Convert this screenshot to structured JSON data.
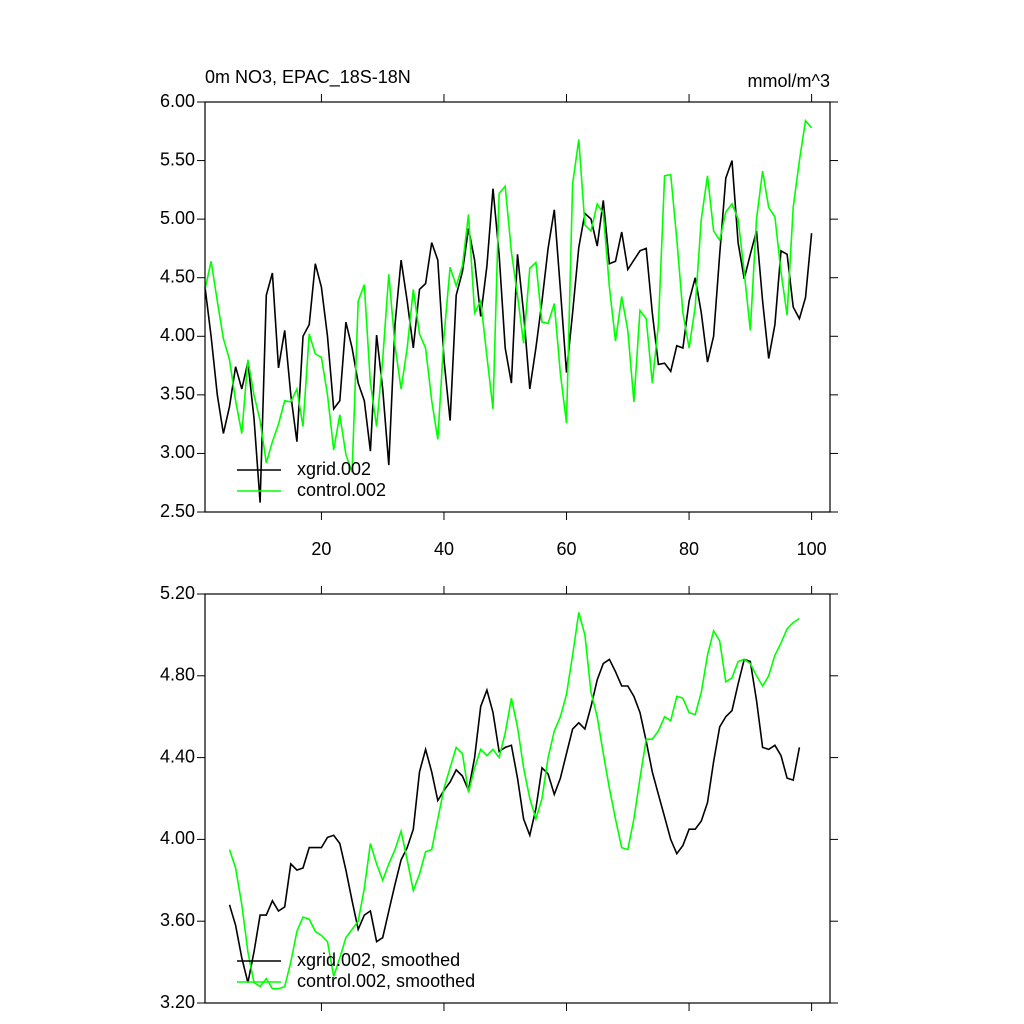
{
  "chart_data": [
    {
      "type": "line",
      "title": "0m NO3, EPAC_18S-18N",
      "subtitle": "mmol/m^3",
      "x": [
        1,
        2,
        3,
        4,
        5,
        6,
        7,
        8,
        9,
        10,
        11,
        12,
        13,
        14,
        15,
        16,
        17,
        18,
        19,
        20,
        21,
        22,
        23,
        24,
        25,
        26,
        27,
        28,
        29,
        30,
        31,
        32,
        33,
        34,
        35,
        36,
        37,
        38,
        39,
        40,
        41,
        42,
        43,
        44,
        45,
        46,
        47,
        48,
        49,
        50,
        51,
        52,
        53,
        54,
        55,
        56,
        57,
        58,
        59,
        60,
        61,
        62,
        63,
        64,
        65,
        66,
        67,
        68,
        69,
        70,
        71,
        72,
        73,
        74,
        75,
        76,
        77,
        78,
        79,
        80,
        81,
        82,
        83,
        84,
        85,
        86,
        87,
        88,
        89,
        90,
        91,
        92,
        93,
        94,
        95,
        96,
        97,
        98,
        99,
        100
      ],
      "series": [
        {
          "name": "xgrid.002",
          "color": "#000000",
          "values": [
            4.42,
            4.0,
            3.5,
            3.17,
            3.4,
            3.74,
            3.55,
            3.78,
            3.3,
            2.58,
            4.35,
            4.54,
            3.73,
            4.05,
            3.5,
            3.1,
            4.0,
            4.1,
            4.62,
            4.42,
            4.0,
            3.38,
            3.45,
            4.12,
            3.9,
            3.6,
            3.45,
            3.02,
            4.01,
            3.55,
            2.9,
            4.1,
            4.65,
            4.3,
            3.9,
            4.4,
            4.45,
            4.8,
            4.65,
            3.8,
            3.28,
            4.35,
            4.55,
            4.92,
            4.65,
            4.17,
            4.6,
            5.26,
            4.7,
            3.9,
            3.6,
            4.7,
            4.2,
            3.55,
            3.9,
            4.3,
            4.75,
            5.08,
            4.4,
            3.69,
            4.2,
            4.76,
            5.05,
            5.0,
            4.77,
            5.16,
            4.62,
            4.64,
            4.89,
            4.57,
            4.65,
            4.73,
            4.75,
            4.2,
            3.76,
            3.77,
            3.7,
            3.92,
            3.9,
            4.3,
            4.5,
            4.2,
            3.78,
            4.0,
            4.7,
            5.35,
            5.5,
            4.8,
            4.49,
            4.7,
            4.9,
            4.3,
            3.81,
            4.1,
            4.73,
            4.7,
            4.25,
            4.15,
            4.33,
            4.88
          ]
        },
        {
          "name": "control.002",
          "color": "#00ff00",
          "values": [
            4.4,
            4.64,
            4.3,
            3.98,
            3.8,
            3.45,
            3.17,
            3.8,
            3.5,
            3.28,
            2.92,
            3.1,
            3.25,
            3.45,
            3.44,
            3.55,
            3.23,
            4.02,
            3.85,
            3.82,
            3.5,
            3.03,
            3.33,
            2.99,
            2.84,
            4.3,
            4.44,
            3.6,
            3.23,
            3.8,
            4.53,
            3.92,
            3.55,
            3.9,
            4.4,
            4.02,
            3.9,
            3.45,
            3.12,
            4.0,
            4.59,
            4.43,
            4.6,
            5.04,
            4.2,
            4.3,
            3.83,
            3.38,
            5.22,
            5.28,
            4.72,
            4.35,
            3.94,
            4.58,
            4.63,
            4.12,
            4.11,
            4.28,
            3.68,
            3.26,
            5.3,
            5.68,
            4.95,
            4.9,
            5.13,
            5.05,
            4.42,
            3.96,
            4.34,
            4.05,
            3.44,
            4.22,
            4.15,
            3.6,
            4.1,
            5.37,
            5.38,
            4.83,
            4.2,
            3.9,
            4.25,
            5.0,
            5.37,
            4.9,
            4.82,
            5.06,
            5.13,
            5.0,
            4.55,
            4.05,
            5.0,
            5.41,
            5.1,
            5.02,
            4.55,
            4.18,
            5.1,
            5.5,
            5.84,
            5.78
          ]
        }
      ],
      "xlim": [
        1,
        103
      ],
      "xticks": [
        20,
        40,
        60,
        80,
        100
      ],
      "ylim": [
        2.5,
        6.0
      ],
      "yticks": [
        {
          "value": 2.5,
          "label": "2.50"
        },
        {
          "value": 3.0,
          "label": "3.00"
        },
        {
          "value": 3.5,
          "label": "3.50"
        },
        {
          "value": 4.0,
          "label": "4.00"
        },
        {
          "value": 4.5,
          "label": "4.50"
        },
        {
          "value": 5.0,
          "label": "5.00"
        },
        {
          "value": 5.5,
          "label": "5.50"
        },
        {
          "value": 6.0,
          "label": "6.00"
        }
      ],
      "legend": "lower left"
    },
    {
      "type": "line",
      "x": [
        5,
        6,
        7,
        8,
        9,
        10,
        11,
        12,
        13,
        14,
        15,
        16,
        17,
        18,
        19,
        20,
        21,
        22,
        23,
        24,
        25,
        26,
        27,
        28,
        29,
        30,
        31,
        32,
        33,
        34,
        35,
        36,
        37,
        38,
        39,
        40,
        41,
        42,
        43,
        44,
        45,
        46,
        47,
        48,
        49,
        50,
        51,
        52,
        53,
        54,
        55,
        56,
        57,
        58,
        59,
        60,
        61,
        62,
        63,
        64,
        65,
        66,
        67,
        68,
        69,
        70,
        71,
        72,
        73,
        74,
        75,
        76,
        77,
        78,
        79,
        80,
        81,
        82,
        83,
        84,
        85,
        86,
        87,
        88,
        89,
        90,
        91,
        92,
        93,
        94,
        95,
        96,
        97,
        98
      ],
      "series": [
        {
          "name": "xgrid.002, smoothed",
          "color": "#000000",
          "values": [
            3.68,
            3.58,
            3.42,
            3.3,
            3.45,
            3.63,
            3.63,
            3.7,
            3.65,
            3.67,
            3.88,
            3.85,
            3.86,
            3.96,
            3.96,
            3.96,
            4.01,
            4.02,
            3.98,
            3.85,
            3.7,
            3.56,
            3.63,
            3.65,
            3.5,
            3.52,
            3.65,
            3.78,
            3.9,
            3.96,
            4.05,
            4.33,
            4.44,
            4.33,
            4.19,
            4.24,
            4.28,
            4.34,
            4.31,
            4.24,
            4.4,
            4.65,
            4.73,
            4.62,
            4.43,
            4.45,
            4.46,
            4.3,
            4.1,
            4.02,
            4.15,
            4.35,
            4.32,
            4.22,
            4.3,
            4.42,
            4.54,
            4.57,
            4.54,
            4.65,
            4.78,
            4.86,
            4.88,
            4.82,
            4.75,
            4.75,
            4.7,
            4.62,
            4.48,
            4.33,
            4.22,
            4.11,
            4.0,
            3.93,
            3.97,
            4.05,
            4.05,
            4.09,
            4.18,
            4.38,
            4.55,
            4.6,
            4.63,
            4.76,
            4.88,
            4.87,
            4.68,
            4.45,
            4.44,
            4.46,
            4.41,
            4.3,
            4.29,
            4.45
          ]
        },
        {
          "name": "control.002, smoothed",
          "color": "#00ff00",
          "values": [
            3.95,
            3.86,
            3.68,
            3.45,
            3.3,
            3.28,
            3.32,
            3.27,
            3.27,
            3.28,
            3.4,
            3.55,
            3.62,
            3.61,
            3.55,
            3.53,
            3.5,
            3.33,
            3.42,
            3.52,
            3.56,
            3.6,
            3.76,
            3.98,
            3.88,
            3.8,
            3.88,
            3.95,
            4.04,
            3.9,
            3.75,
            3.83,
            3.94,
            3.95,
            4.1,
            4.25,
            4.35,
            4.45,
            4.42,
            4.23,
            4.35,
            4.44,
            4.41,
            4.44,
            4.4,
            4.52,
            4.69,
            4.55,
            4.35,
            4.2,
            4.1,
            4.2,
            4.4,
            4.53,
            4.6,
            4.71,
            4.9,
            5.11,
            5.0,
            4.72,
            4.6,
            4.42,
            4.25,
            4.1,
            3.96,
            3.95,
            4.1,
            4.3,
            4.49,
            4.49,
            4.53,
            4.6,
            4.58,
            4.7,
            4.69,
            4.62,
            4.61,
            4.72,
            4.9,
            5.02,
            4.97,
            4.77,
            4.79,
            4.87,
            4.88,
            4.86,
            4.8,
            4.75,
            4.8,
            4.9,
            4.96,
            5.03,
            5.06,
            5.08
          ]
        }
      ],
      "xlim": [
        1,
        103
      ],
      "xticks": [
        20,
        40,
        60,
        80,
        100
      ],
      "xtick_labels": false,
      "ylim": [
        3.2,
        5.2
      ],
      "yticks": [
        {
          "value": 3.2,
          "label": "3.20"
        },
        {
          "value": 3.6,
          "label": "3.60"
        },
        {
          "value": 4.0,
          "label": "4.00"
        },
        {
          "value": 4.4,
          "label": "4.40"
        },
        {
          "value": 4.8,
          "label": "4.80"
        },
        {
          "value": 5.2,
          "label": "5.20"
        }
      ],
      "legend": "lower left"
    }
  ]
}
